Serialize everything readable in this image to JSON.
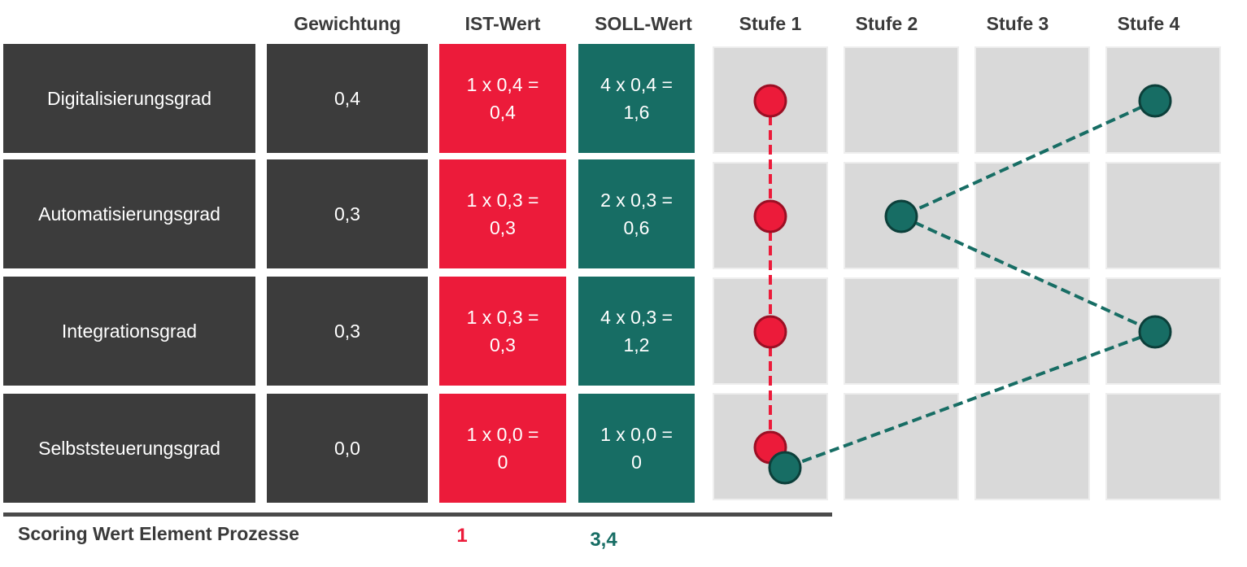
{
  "headers": {
    "gewichtung": "Gewichtung",
    "ist": "IST-Wert",
    "soll": "SOLL-Wert",
    "stufe1": "Stufe 1",
    "stufe2": "Stufe 2",
    "stufe3": "Stufe 3",
    "stufe4": "Stufe 4"
  },
  "rows": [
    {
      "name": "Digitalisierungsgrad",
      "weight": "0,4",
      "ist": "1 x 0,4 =\n0,4",
      "soll": "4 x 0,4 =\n1,6",
      "ist_level": 1,
      "soll_level": 4
    },
    {
      "name": "Automatisierungsgrad",
      "weight": "0,3",
      "ist": "1 x 0,3 =\n0,3",
      "soll": "2 x 0,3 =\n0,6",
      "ist_level": 1,
      "soll_level": 2
    },
    {
      "name": "Integrationsgrad",
      "weight": "0,3",
      "ist": "1 x 0,3 =\n0,3",
      "soll": "4 x 0,3 =\n1,2",
      "ist_level": 1,
      "soll_level": 4
    },
    {
      "name": "Selbststeuerungsgrad",
      "weight": "0,0",
      "ist": "1 x 0,0 =\n0",
      "soll": "1 x 0,0 =\n0",
      "ist_level": 1,
      "soll_level": 1
    }
  ],
  "footer": {
    "label": "Scoring Wert Element Prozesse",
    "ist_total": "1",
    "soll_total": "3,4"
  },
  "colors": {
    "ist": "#ec1b3a",
    "soll": "#176d64",
    "dark": "#3c3c3c"
  }
}
